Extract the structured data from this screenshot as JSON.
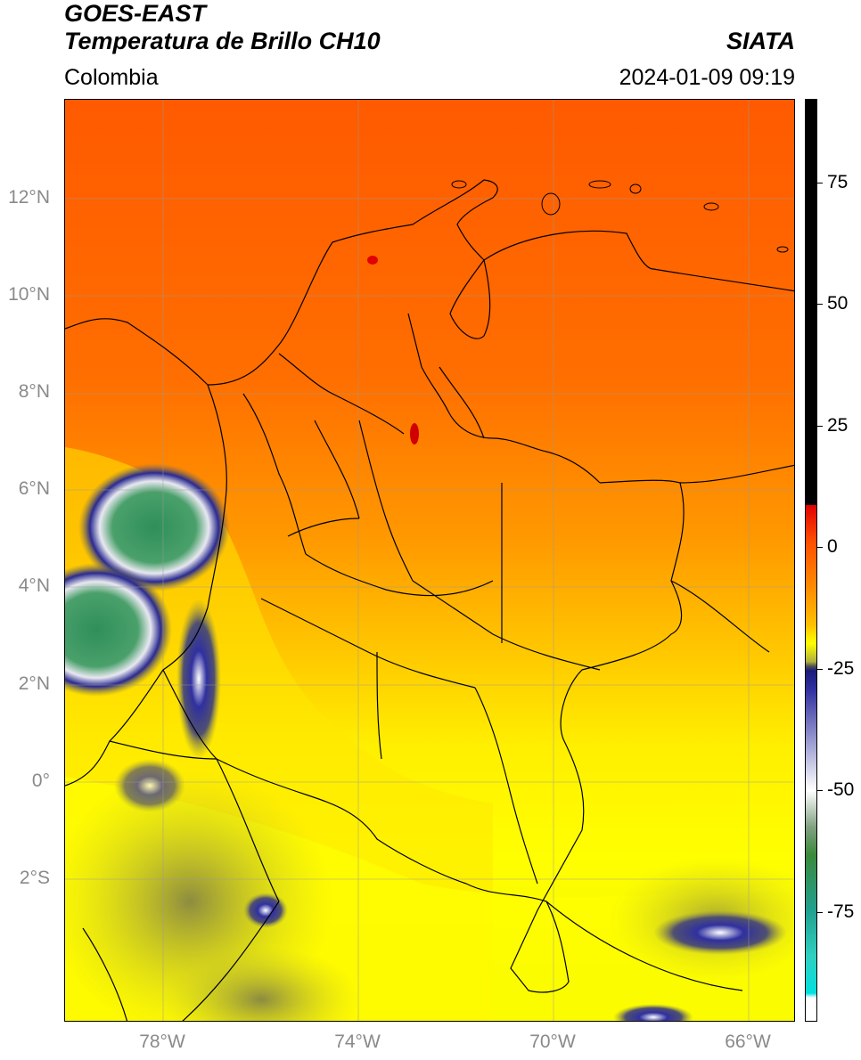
{
  "header": {
    "title_line1": "GOES-EAST",
    "title_line2": "Temperatura de Brillo CH10",
    "credit": "SIATA",
    "region": "Colombia",
    "datetime": "2024-01-09 09:19"
  },
  "map": {
    "lat_labels": [
      "12°N",
      "10°N",
      "8°N",
      "6°N",
      "4°N",
      "2°N",
      "0°",
      "2°S"
    ],
    "lon_labels": [
      "78°W",
      "74°W",
      "70°W",
      "66°W"
    ]
  },
  "colorbar": {
    "labels": [
      "75",
      "50",
      "25",
      "0",
      "-25",
      "-50",
      "-75"
    ]
  },
  "colors": {
    "warm_orange": "#ff5a00",
    "mid_orange": "#ff8c00",
    "yellow": "#ffff00",
    "olive": "#b5b540",
    "navy": "#1a1a7a",
    "white": "#ffffff",
    "green": "#3a9a5a",
    "teal": "#20c0a0",
    "red": "#e00000",
    "black": "#000000"
  }
}
